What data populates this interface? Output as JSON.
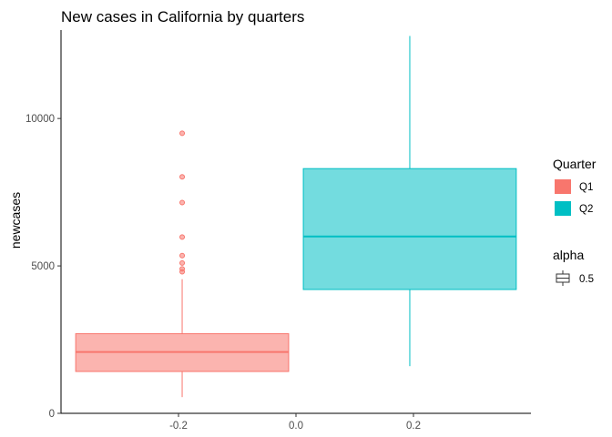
{
  "chart_data": {
    "type": "boxplot",
    "title": "New cases in California by quarters",
    "xlabel": "",
    "ylabel": "newcases",
    "xlim": [
      -0.4,
      0.4
    ],
    "ylim": [
      0,
      13000
    ],
    "x_ticks": [
      -0.2,
      0.0,
      0.2
    ],
    "x_tick_labels": [
      "-0.2",
      "0.0",
      "0.2"
    ],
    "y_ticks": [
      0,
      5000,
      10000
    ],
    "y_tick_labels": [
      "0",
      "5000",
      "10000"
    ],
    "grid": false,
    "legend_position": "right",
    "series": [
      {
        "name": "Q1",
        "color": "#F8766D",
        "x_range": [
          -0.375,
          -0.0125
        ],
        "min": 550,
        "q1": 1420,
        "median": 2080,
        "q3": 2700,
        "max": 4550,
        "outliers": [
          9500,
          8020,
          7150,
          5980,
          5350,
          5100,
          4900,
          4800
        ]
      },
      {
        "name": "Q2",
        "color": "#00BFC4",
        "x_range": [
          0.0125,
          0.375
        ],
        "min": 1600,
        "q1": 4200,
        "median": 6000,
        "q3": 8300,
        "max": 12800,
        "outliers": []
      }
    ],
    "legends": [
      {
        "title": "Quarter",
        "entries": [
          {
            "label": "Q1",
            "color": "#F8766D"
          },
          {
            "label": "Q2",
            "color": "#00BFC4"
          }
        ]
      },
      {
        "title": "alpha",
        "entries": [
          {
            "label": "0.5"
          }
        ]
      }
    ]
  }
}
